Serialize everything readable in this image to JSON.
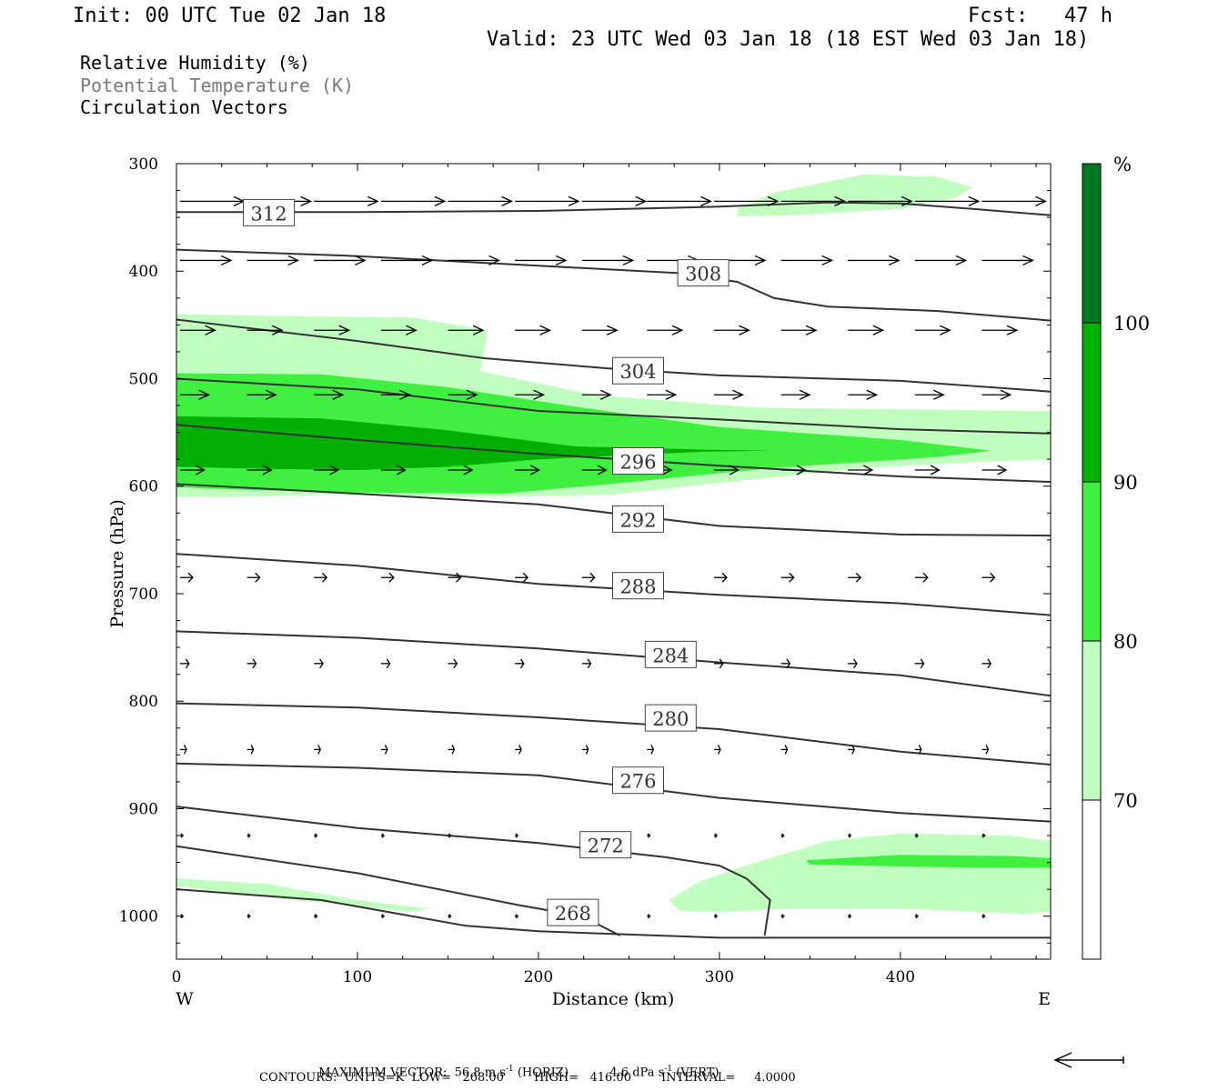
{
  "header": {
    "init": "Init: 00 UTC Tue 02 Jan 18",
    "fcst": "Fcst:   47 h",
    "valid": "Valid: 23 UTC Wed 03 Jan 18 (18 EST Wed 03 Jan 18)"
  },
  "legend": {
    "rh": "Relative Humidity (%)",
    "theta": "Potential Temperature (K)",
    "vectors": "Circulation Vectors"
  },
  "footer": {
    "max_vector_label": "MAXIMUM VECTOR:",
    "horiz_value": "56.8",
    "horiz_unit": "m s",
    "horiz_tag": "(HORIZ)",
    "vert_value": "4.6",
    "vert_unit": "dPa s",
    "vert_tag": "(VERT)",
    "exp": "-1",
    "contours_line": "CONTOURS:  UNITS=K  LOW=   268.00        HIGH=   416.00        INTERVAL=     4.0000"
  },
  "colors": {
    "rh70": "#c0ffc0",
    "rh80": "#40f040",
    "rh90": "#00b000",
    "rh100": "#007a20",
    "contour": "#333333"
  },
  "chart_data": {
    "type": "cross-section",
    "xlabel": "Distance (km)",
    "ylabel": "Pressure (hPa)",
    "xlim": [
      0,
      483
    ],
    "ylim": [
      1040,
      300
    ],
    "y_log": false,
    "x_ticks": [
      0,
      100,
      200,
      300,
      400
    ],
    "y_ticks": [
      300,
      400,
      500,
      600,
      700,
      800,
      900,
      1000
    ],
    "x_end_labels": {
      "left": "W",
      "right": "E"
    },
    "colorbar": {
      "unit": "%",
      "levels": [
        70,
        80,
        90,
        100
      ],
      "labels": [
        "70",
        "80",
        "90",
        "100"
      ]
    },
    "rh_regions": [
      {
        "level": 70,
        "polygon": [
          [
            0,
            440
          ],
          [
            70,
            442
          ],
          [
            130,
            443
          ],
          [
            172,
            455
          ],
          [
            168,
            493
          ],
          [
            230,
            515
          ],
          [
            320,
            527
          ],
          [
            480,
            530
          ],
          [
            483,
            530
          ],
          [
            483,
            575
          ],
          [
            450,
            577
          ],
          [
            380,
            583
          ],
          [
            300,
            597
          ],
          [
            240,
            608
          ],
          [
            160,
            610
          ],
          [
            80,
            608
          ],
          [
            30,
            610
          ],
          [
            0,
            610
          ]
        ]
      },
      {
        "level": 80,
        "polygon": [
          [
            0,
            495
          ],
          [
            80,
            496
          ],
          [
            150,
            508
          ],
          [
            220,
            526
          ],
          [
            300,
            545
          ],
          [
            400,
            557
          ],
          [
            450,
            567
          ],
          [
            420,
            573
          ],
          [
            330,
            583
          ],
          [
            240,
            598
          ],
          [
            180,
            607
          ],
          [
            100,
            606
          ],
          [
            30,
            603
          ],
          [
            0,
            601
          ]
        ]
      },
      {
        "level": 90,
        "polygon": [
          [
            0,
            535
          ],
          [
            80,
            537
          ],
          [
            150,
            548
          ],
          [
            220,
            563
          ],
          [
            290,
            566
          ],
          [
            330,
            567
          ],
          [
            290,
            568
          ],
          [
            200,
            575
          ],
          [
            150,
            582
          ],
          [
            100,
            585
          ],
          [
            50,
            584
          ],
          [
            0,
            582
          ]
        ]
      },
      {
        "level": 70,
        "polygon": [
          [
            310,
            342
          ],
          [
            330,
            327
          ],
          [
            380,
            310
          ],
          [
            420,
            312
          ],
          [
            440,
            322
          ],
          [
            430,
            332
          ],
          [
            400,
            342
          ],
          [
            340,
            348
          ],
          [
            310,
            349
          ]
        ]
      },
      {
        "level": 70,
        "polygon": [
          [
            0,
            965
          ],
          [
            50,
            970
          ],
          [
            100,
            985
          ],
          [
            140,
            993
          ],
          [
            130,
            996
          ],
          [
            60,
            984
          ],
          [
            0,
            972
          ]
        ]
      },
      {
        "level": 70,
        "polygon": [
          [
            272,
            985
          ],
          [
            290,
            967
          ],
          [
            320,
            950
          ],
          [
            360,
            930
          ],
          [
            400,
            923
          ],
          [
            460,
            925
          ],
          [
            483,
            930
          ],
          [
            483,
            995
          ],
          [
            470,
            998
          ],
          [
            400,
            993
          ],
          [
            340,
            993
          ],
          [
            300,
            996
          ],
          [
            278,
            995
          ]
        ]
      },
      {
        "level": 80,
        "polygon": [
          [
            348,
            948
          ],
          [
            400,
            943
          ],
          [
            460,
            944
          ],
          [
            483,
            946
          ],
          [
            483,
            955
          ],
          [
            440,
            955
          ],
          [
            380,
            953
          ],
          [
            350,
            952
          ]
        ]
      }
    ],
    "theta_contours": [
      {
        "value": 312,
        "label": "312",
        "label_at": [
          38,
          346
        ],
        "points": [
          [
            0,
            345
          ],
          [
            100,
            345
          ],
          [
            200,
            344
          ],
          [
            300,
            340
          ],
          [
            360,
            336
          ],
          [
            400,
            337
          ],
          [
            440,
            342
          ],
          [
            483,
            348
          ]
        ]
      },
      {
        "value": 308,
        "label": "308",
        "label_at": [
          278,
          402
        ],
        "points": [
          [
            0,
            380
          ],
          [
            100,
            386
          ],
          [
            200,
            395
          ],
          [
            280,
            402
          ],
          [
            310,
            410
          ],
          [
            330,
            425
          ],
          [
            360,
            433
          ],
          [
            420,
            437
          ],
          [
            483,
            446
          ]
        ]
      },
      {
        "value": 304,
        "label": "304",
        "label_at": [
          242,
          493
        ],
        "points": [
          [
            0,
            445
          ],
          [
            100,
            465
          ],
          [
            170,
            481
          ],
          [
            242,
            491
          ],
          [
            300,
            497
          ],
          [
            400,
            502
          ],
          [
            483,
            512
          ]
        ]
      },
      {
        "value": 300,
        "label": "",
        "label_at": [
          0,
          0
        ],
        "points": [
          [
            0,
            500
          ],
          [
            100,
            510
          ],
          [
            200,
            530
          ],
          [
            300,
            538
          ],
          [
            400,
            547
          ],
          [
            483,
            551
          ]
        ]
      },
      {
        "value": 296,
        "label": "296",
        "label_at": [
          242,
          577
        ],
        "points": [
          [
            0,
            543
          ],
          [
            100,
            557
          ],
          [
            200,
            570
          ],
          [
            300,
            581
          ],
          [
            400,
            591
          ],
          [
            483,
            596
          ]
        ]
      },
      {
        "value": 292,
        "label": "292",
        "label_at": [
          242,
          631
        ],
        "points": [
          [
            0,
            598
          ],
          [
            100,
            607
          ],
          [
            200,
            617
          ],
          [
            300,
            637
          ],
          [
            400,
            645
          ],
          [
            483,
            646
          ]
        ]
      },
      {
        "value": 288,
        "label": "288",
        "label_at": [
          242,
          693
        ],
        "points": [
          [
            0,
            663
          ],
          [
            100,
            674
          ],
          [
            200,
            691
          ],
          [
            300,
            701
          ],
          [
            400,
            709
          ],
          [
            483,
            720
          ]
        ]
      },
      {
        "value": 284,
        "label": "284",
        "label_at": [
          260,
          757
        ],
        "points": [
          [
            0,
            735
          ],
          [
            100,
            741
          ],
          [
            200,
            751
          ],
          [
            300,
            764
          ],
          [
            400,
            776
          ],
          [
            483,
            795
          ]
        ]
      },
      {
        "value": 280,
        "label": "280",
        "label_at": [
          260,
          816
        ],
        "points": [
          [
            0,
            802
          ],
          [
            100,
            806
          ],
          [
            200,
            815
          ],
          [
            300,
            826
          ],
          [
            400,
            847
          ],
          [
            483,
            859
          ]
        ]
      },
      {
        "value": 276,
        "label": "276",
        "label_at": [
          242,
          874
        ],
        "points": [
          [
            0,
            858
          ],
          [
            100,
            862
          ],
          [
            200,
            869
          ],
          [
            300,
            890
          ],
          [
            400,
            904
          ],
          [
            483,
            912
          ]
        ]
      },
      {
        "value": 272,
        "label": "272",
        "label_at": [
          224,
          934
        ],
        "points": [
          [
            0,
            898
          ],
          [
            100,
            918
          ],
          [
            200,
            932
          ],
          [
            270,
            945
          ],
          [
            300,
            953
          ],
          [
            315,
            965
          ],
          [
            328,
            985
          ],
          [
            325,
            1018
          ]
        ]
      },
      {
        "value": 268,
        "label": "268",
        "label_at": [
          206,
          997
        ],
        "points": [
          [
            0,
            935
          ],
          [
            100,
            960
          ],
          [
            190,
            990
          ],
          [
            224,
            1000
          ],
          [
            245,
            1018
          ]
        ]
      },
      {
        "value": 0,
        "label": "",
        "label_at": [
          0,
          0
        ],
        "points": [
          [
            0,
            975
          ],
          [
            80,
            985
          ],
          [
            160,
            1009
          ],
          [
            200,
            1014
          ],
          [
            300,
            1020
          ],
          [
            483,
            1020
          ]
        ]
      }
    ],
    "vectors_rows": [
      {
        "p": 335,
        "x": [
          0,
          37,
          74,
          111,
          148,
          185,
          222,
          258,
          295,
          332,
          369,
          406,
          443
        ],
        "u": 1.0,
        "w": 0.0
      },
      {
        "p": 390,
        "x": [
          0,
          37,
          74,
          111,
          148,
          185,
          222,
          258,
          295,
          332,
          369,
          406,
          443
        ],
        "u": 0.8,
        "w": 0.0
      },
      {
        "p": 455,
        "x": [
          0,
          37,
          74,
          111,
          148,
          185,
          222,
          258,
          295,
          332,
          369,
          406,
          443
        ],
        "u": 0.55,
        "w": 0.0
      },
      {
        "p": 515,
        "x": [
          0,
          37,
          74,
          111,
          148,
          185,
          222,
          258,
          295,
          332,
          369,
          406,
          443
        ],
        "u": 0.45,
        "w": 0.0
      },
      {
        "p": 585,
        "x": [
          0,
          37,
          74,
          111,
          148,
          185,
          222,
          258,
          295,
          332,
          369,
          406,
          443
        ],
        "u": 0.38,
        "w": 0.0
      },
      {
        "p": 685,
        "x": [
          0,
          37,
          74,
          111,
          148,
          185,
          222,
          258,
          295,
          332,
          369,
          406,
          443
        ],
        "u": 0.2,
        "w": 0.0
      },
      {
        "p": 765,
        "x": [
          0,
          37,
          74,
          111,
          148,
          185,
          222,
          258,
          295,
          332,
          369,
          406,
          443
        ],
        "u": 0.14,
        "w": 0.0
      },
      {
        "p": 845,
        "x": [
          0,
          37,
          74,
          111,
          148,
          185,
          222,
          258,
          295,
          332,
          369,
          406,
          443
        ],
        "u": 0.1,
        "w": 0.0
      },
      {
        "p": 925,
        "x": [
          0,
          37,
          74,
          111,
          148,
          185,
          222,
          258,
          295,
          332,
          369,
          406,
          443
        ],
        "u": 0.04,
        "w": 0.0
      },
      {
        "p": 1000,
        "x": [
          0,
          37,
          74,
          111,
          148,
          185,
          222,
          258,
          295,
          332,
          369,
          406,
          443
        ],
        "u": 0.03,
        "w": 0.0
      }
    ],
    "reference_vector": {
      "direction": "left"
    }
  }
}
